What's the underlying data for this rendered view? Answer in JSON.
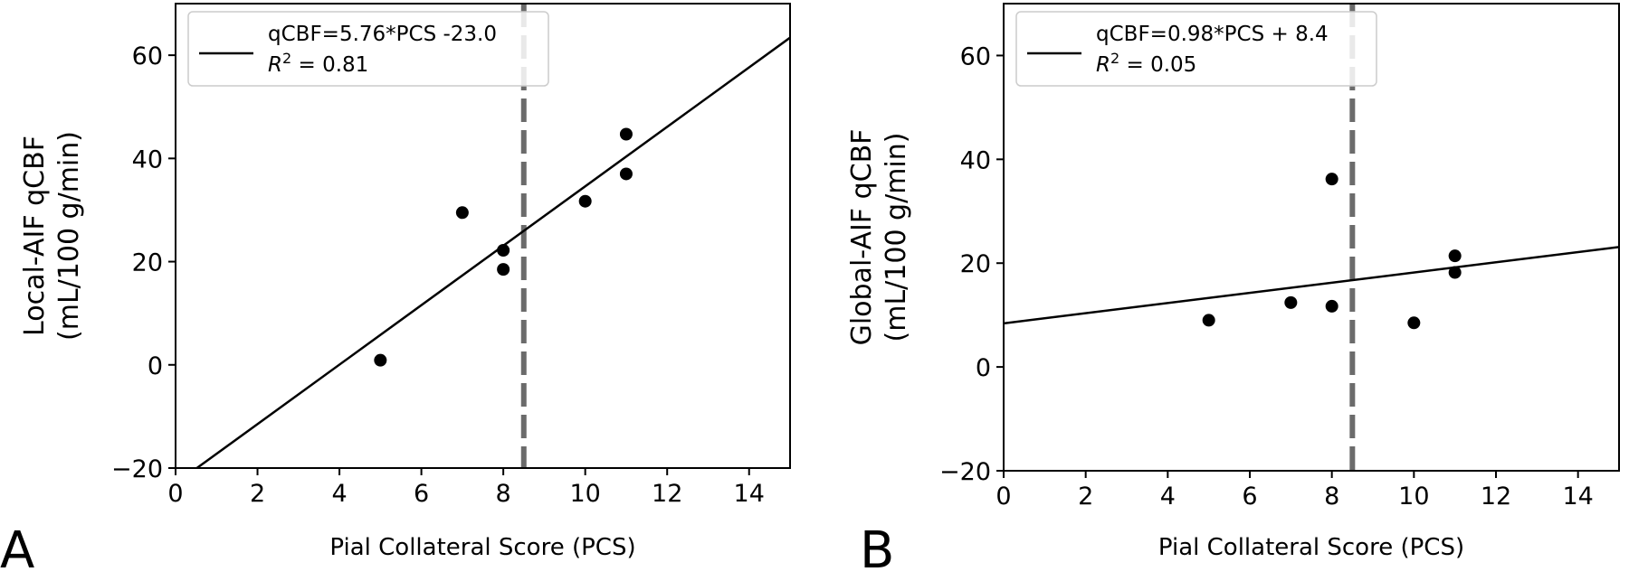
{
  "chart_data": [
    {
      "type": "scatter",
      "panel_label": "A",
      "xlabel": "Pial Collateral Score (PCS)",
      "ylabel_lines": [
        "Local-AIF qCBF",
        "(mL/100 g/min)"
      ],
      "xlim": [
        0,
        15
      ],
      "ylim": [
        -20,
        70
      ],
      "x_ticks": [
        0,
        2,
        4,
        6,
        8,
        10,
        12,
        14
      ],
      "y_ticks": [
        -20,
        0,
        20,
        40,
        60
      ],
      "x_tick_labels": [
        "0",
        "2",
        "4",
        "6",
        "8",
        "10",
        "12",
        "14"
      ],
      "y_tick_labels": [
        "−20",
        "0",
        "20",
        "40",
        "60"
      ],
      "points": [
        {
          "x": 5,
          "y": 0.9
        },
        {
          "x": 7,
          "y": 29.5
        },
        {
          "x": 8,
          "y": 22.2
        },
        {
          "x": 8,
          "y": 18.5
        },
        {
          "x": 10,
          "y": 31.7
        },
        {
          "x": 11,
          "y": 44.7
        },
        {
          "x": 11,
          "y": 37.0
        }
      ],
      "fit": {
        "slope": 5.76,
        "intercept": -23.0
      },
      "threshold_x": 8.5,
      "legend": {
        "position": "top-left",
        "equation": "qCBF=5.76*PCS -23.0",
        "r2_prefix": "R",
        "r2_sup": "2",
        "r2_value": " = 0.81"
      }
    },
    {
      "type": "scatter",
      "panel_label": "B",
      "xlabel": "Pial Collateral Score (PCS)",
      "ylabel_lines": [
        "Global-AIF qCBF",
        "(mL/100 g/min)"
      ],
      "xlim": [
        0,
        15
      ],
      "ylim": [
        -20,
        70
      ],
      "x_ticks": [
        0,
        2,
        4,
        6,
        8,
        10,
        12,
        14
      ],
      "y_ticks": [
        -20,
        0,
        20,
        40,
        60
      ],
      "x_tick_labels": [
        "0",
        "2",
        "4",
        "6",
        "8",
        "10",
        "12",
        "14"
      ],
      "y_tick_labels": [
        "−20",
        "0",
        "20",
        "40",
        "60"
      ],
      "points": [
        {
          "x": 5,
          "y": 9.0
        },
        {
          "x": 7,
          "y": 12.4
        },
        {
          "x": 8,
          "y": 36.2
        },
        {
          "x": 8,
          "y": 11.7
        },
        {
          "x": 10,
          "y": 8.5
        },
        {
          "x": 11,
          "y": 21.4
        },
        {
          "x": 11,
          "y": 18.2
        }
      ],
      "fit": {
        "slope": 0.98,
        "intercept": 8.4
      },
      "threshold_x": 8.5,
      "legend": {
        "position": "top-left",
        "equation": "qCBF=0.98*PCS + 8.4",
        "r2_prefix": "R",
        "r2_sup": "2",
        "r2_value": " = 0.05"
      }
    }
  ],
  "colors": {
    "points": "#000000",
    "fit_line": "#000000",
    "threshold_line": "#6b6b6b",
    "legend_border": "#cccccc",
    "axes": "#000000"
  }
}
